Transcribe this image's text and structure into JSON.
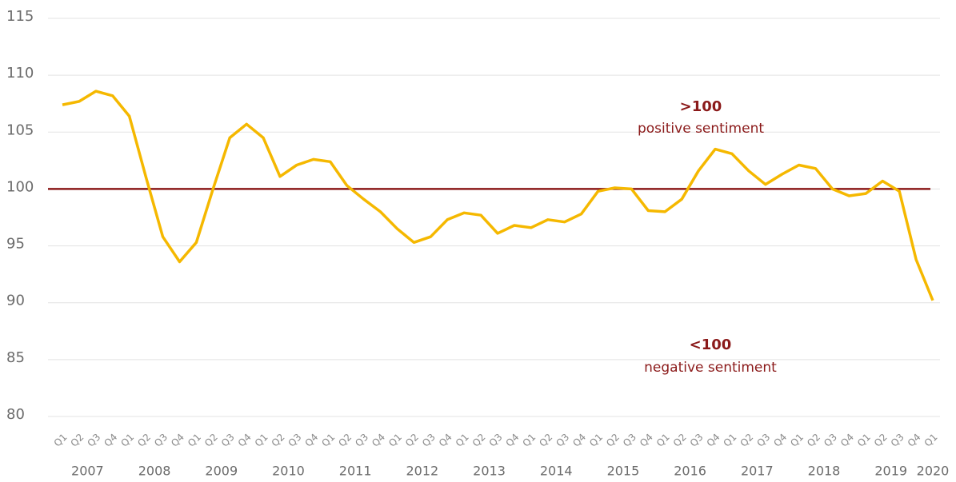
{
  "chart_data": {
    "type": "line",
    "categories": [
      "Q1",
      "Q2",
      "Q3",
      "Q4",
      "Q1",
      "Q2",
      "Q3",
      "Q4",
      "Q1",
      "Q2",
      "Q3",
      "Q4",
      "Q1",
      "Q2",
      "Q3",
      "Q4",
      "Q1",
      "Q2",
      "Q3",
      "Q4",
      "Q1",
      "Q2",
      "Q3",
      "Q4",
      "Q1",
      "Q2",
      "Q3",
      "Q4",
      "Q1",
      "Q2",
      "Q3",
      "Q4",
      "Q1",
      "Q2",
      "Q3",
      "Q4",
      "Q1",
      "Q2",
      "Q3",
      "Q4",
      "Q1",
      "Q2",
      "Q3",
      "Q4",
      "Q1",
      "Q2",
      "Q3",
      "Q4",
      "Q1",
      "Q2",
      "Q3",
      "Q4",
      "Q1"
    ],
    "years": [
      "2007",
      "2008",
      "2009",
      "2010",
      "2011",
      "2012",
      "2013",
      "2014",
      "2015",
      "2016",
      "2017",
      "2018",
      "2019",
      "2020"
    ],
    "values": [
      107.4,
      107.7,
      108.6,
      108.2,
      106.4,
      101,
      95.8,
      93.6,
      95.3,
      100,
      104.5,
      105.7,
      104.5,
      101.1,
      102.1,
      102.6,
      102.4,
      100.3,
      99.1,
      98,
      96.5,
      95.3,
      95.8,
      97.3,
      97.9,
      97.7,
      96.1,
      96.8,
      96.6,
      97.3,
      97.1,
      97.8,
      99.8,
      100.1,
      100,
      98.1,
      98,
      99.1,
      101.6,
      103.5,
      103.1,
      101.6,
      100.4,
      101.3,
      102.1,
      101.8,
      100,
      99.4,
      99.6,
      100.7,
      99.8,
      93.8,
      90.2
    ],
    "color": "#f5b800",
    "ylim": [
      80,
      115
    ],
    "yticks": [
      80,
      85,
      90,
      95,
      100,
      105,
      110,
      115
    ],
    "grid": true,
    "reference_line": {
      "value": 100,
      "color": "#8b1a1a"
    },
    "annotations": [
      {
        "title": ">100",
        "text": "positive sentiment"
      },
      {
        "title": "<100",
        "text": "negative sentiment"
      }
    ]
  }
}
